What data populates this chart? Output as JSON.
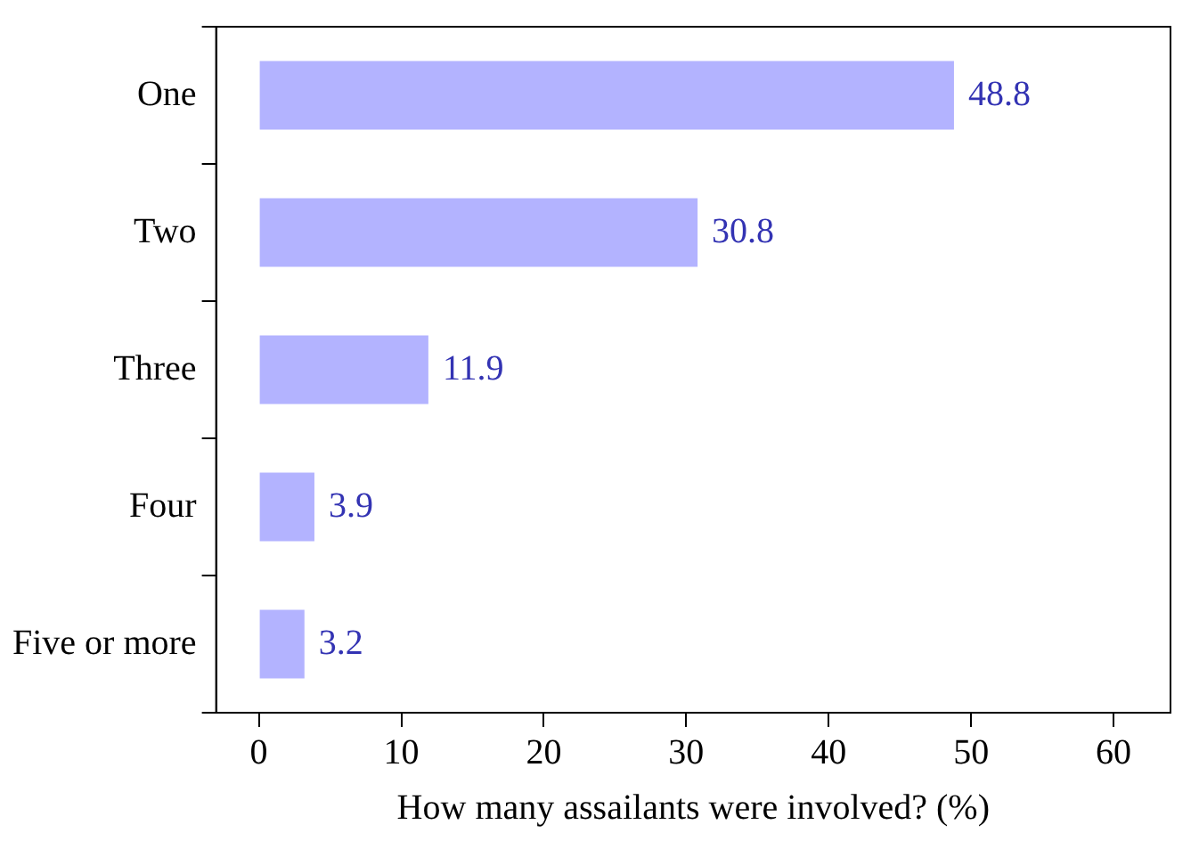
{
  "chart_data": {
    "type": "bar",
    "orientation": "horizontal",
    "xlabel": "How many assailants were involved? (%)",
    "categories": [
      "One",
      "Two",
      "Three",
      "Four",
      "Five or more"
    ],
    "values": [
      48.8,
      30.8,
      11.9,
      3.9,
      3.2
    ],
    "color": "#b3b3ff",
    "xlim": [
      -3,
      64
    ],
    "xticks": [
      0,
      10,
      20,
      30,
      40,
      50,
      60
    ],
    "grid": false,
    "data_labels": true,
    "legend": false
  }
}
